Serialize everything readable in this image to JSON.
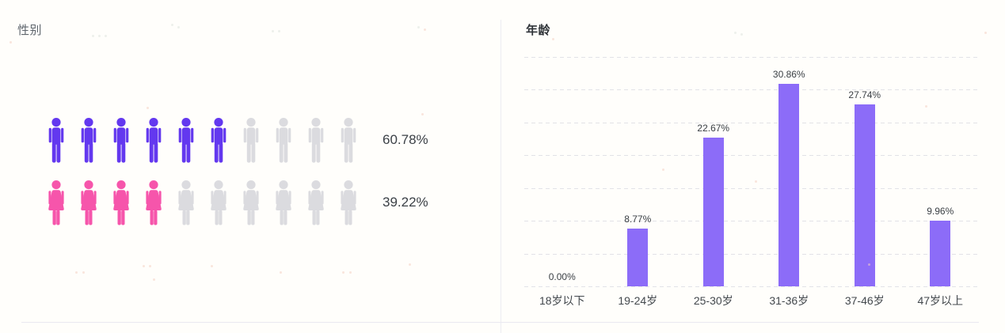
{
  "panels": {
    "gender": {
      "title": "性别"
    },
    "age": {
      "title": "年龄"
    }
  },
  "colors": {
    "male": "#6338ef",
    "female": "#f655ab",
    "empty_icon": "#dbdbdf",
    "bar": "#8c6cf8",
    "gridline": "#e2e2e7"
  },
  "chart_data": [
    {
      "type": "pictogram",
      "title": "性别",
      "legend_position": "none",
      "icons_per_row": 10,
      "empty_color": "#dbdbdf",
      "series": [
        {
          "name": "male",
          "value": 60.78,
          "label": "60.78%",
          "icons_filled": 6,
          "icons_total": 10,
          "color": "#6338ef"
        },
        {
          "name": "female",
          "value": 39.22,
          "label": "39.22%",
          "icons_filled": 4,
          "icons_total": 10,
          "color": "#f655ab"
        }
      ]
    },
    {
      "type": "bar",
      "title": "年龄",
      "categories": [
        "18岁以下",
        "19-24岁",
        "25-30岁",
        "31-36岁",
        "37-46岁",
        "47岁以上"
      ],
      "values": [
        0.0,
        8.77,
        22.67,
        30.86,
        27.74,
        9.96
      ],
      "value_labels": [
        "0.00%",
        "8.77%",
        "22.67%",
        "30.86%",
        "27.74%",
        "9.96%"
      ],
      "xlabel": "",
      "ylabel": "",
      "ylim": [
        0,
        35
      ],
      "grid_step": 5,
      "grid": "dashed-horizontal",
      "legend_position": "none",
      "bar_color": "#8c6cf8"
    }
  ]
}
